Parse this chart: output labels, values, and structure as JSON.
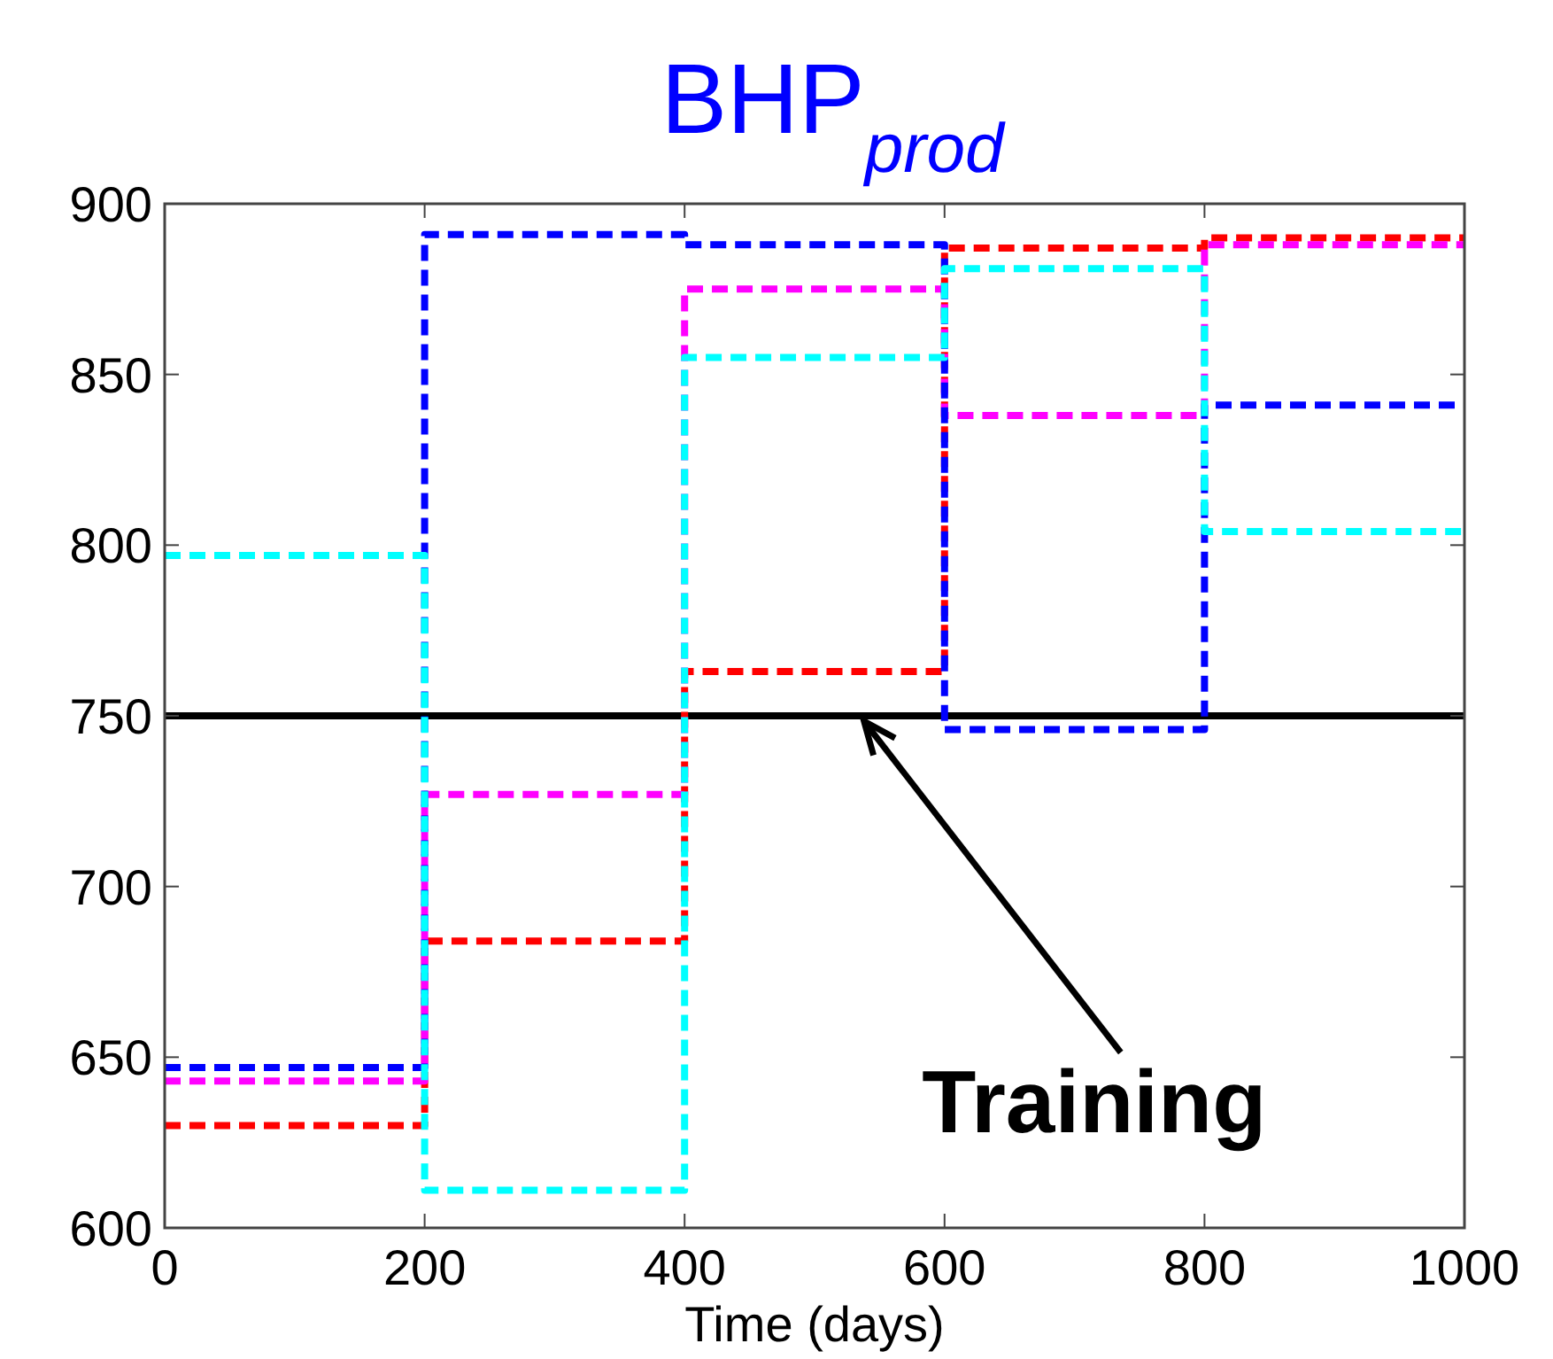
{
  "chart_data": {
    "type": "step",
    "title": "BHP$_{prod}$",
    "xlabel": "Time (days)",
    "x": [
      0,
      200,
      400,
      600,
      800,
      1000
    ],
    "xlim": [
      0,
      1000
    ],
    "xticks": [
      0,
      200,
      400,
      600,
      800,
      1000
    ],
    "ylim": [
      600,
      900
    ],
    "yticks": [
      600,
      650,
      700,
      750,
      800,
      850,
      900
    ],
    "line_style": "dashed",
    "grid": false,
    "series": [
      {
        "color": "#ff0000",
        "values": [
          630,
          684,
          763,
          887,
          890,
          890
        ]
      },
      {
        "color": "#ff00ff",
        "values": [
          643,
          727,
          875,
          838,
          888,
          888
        ]
      },
      {
        "color": "#0000ff",
        "values": [
          647,
          891,
          888,
          746,
          841,
          841
        ]
      },
      {
        "color": "#00ffff",
        "values": [
          797,
          611,
          855,
          881,
          804,
          804
        ]
      }
    ],
    "ref_lines": [
      {
        "axis": "y",
        "value": 750,
        "color": "#000000",
        "line_style": "solid"
      }
    ],
    "annotations": [
      {
        "text": "Training",
        "x": 538,
        "y": 750
      }
    ]
  }
}
